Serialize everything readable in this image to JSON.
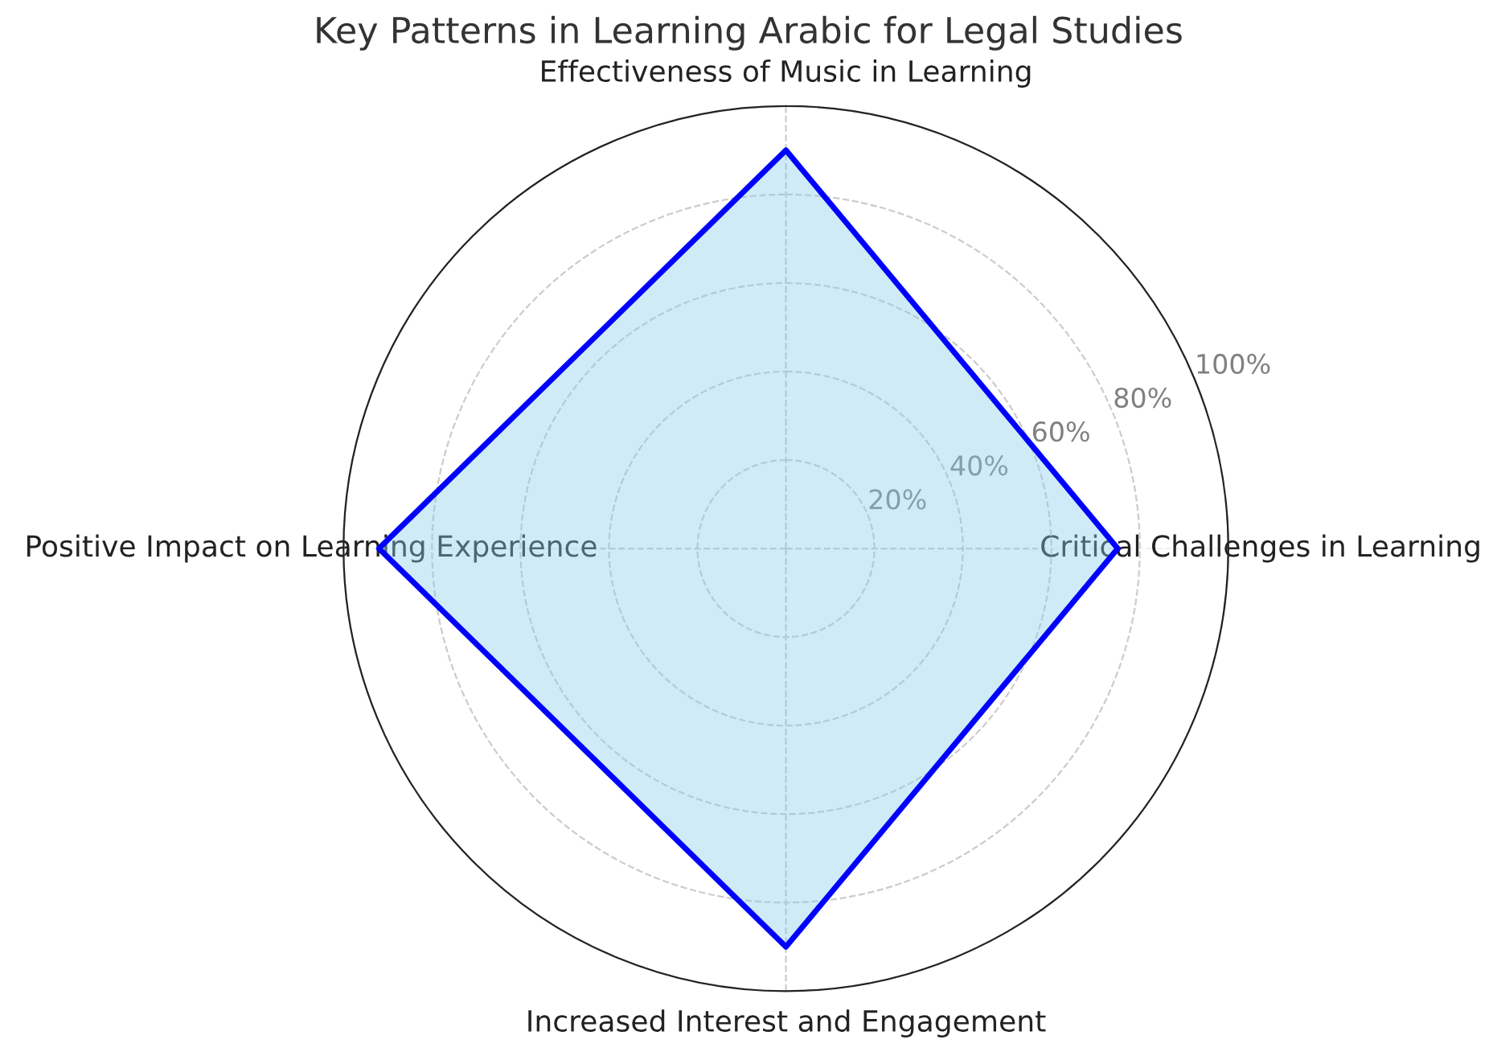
{
  "chart_data": {
    "type": "radar",
    "title": "Key Patterns in Learning Arabic for Legal Studies",
    "categories": [
      "Effectiveness of Music in Learning",
      "Critical Challenges in Learning",
      "Increased Interest and Engagement",
      "Positive Impact on Learning Experience"
    ],
    "series": [
      {
        "color": "#0000ff",
        "values": [
          90,
          75,
          90,
          92
        ]
      }
    ],
    "ylim": [
      0,
      100
    ],
    "yticks": [
      {
        "value": 20,
        "label": "20%"
      },
      {
        "value": 40,
        "label": "40%"
      },
      {
        "value": 60,
        "label": "60%"
      },
      {
        "value": 80,
        "label": "80%"
      },
      {
        "value": 100,
        "label": "100%"
      }
    ],
    "grid": true,
    "legend": false
  }
}
